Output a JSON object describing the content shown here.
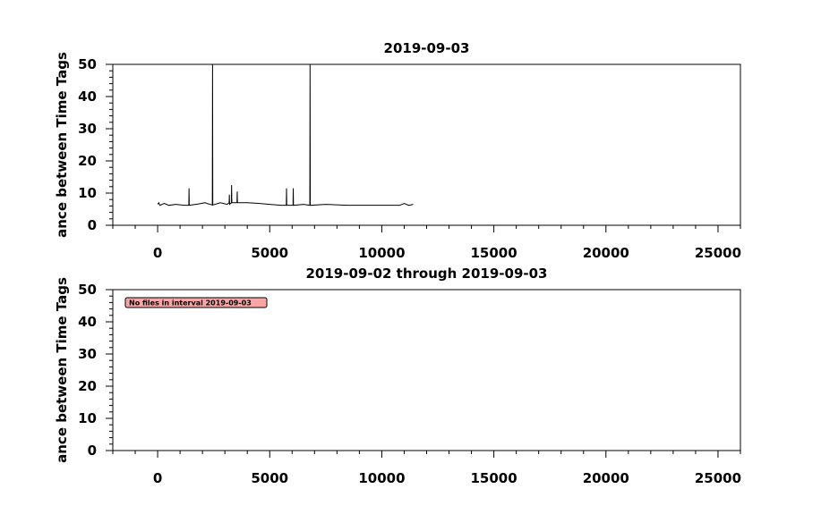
{
  "chart_data": [
    {
      "type": "line",
      "title": "2019-09-03",
      "ylabel": "ance between Time Tags",
      "xlim": [
        -2000,
        26000
      ],
      "ylim": [
        0,
        50
      ],
      "xticks": [
        0,
        5000,
        10000,
        15000,
        20000,
        25000
      ],
      "yticks": [
        0,
        10,
        20,
        30,
        40,
        50
      ],
      "x_minor_ticks": [
        -2000,
        -1000,
        1000,
        2000,
        3000,
        4000,
        6000,
        7000,
        8000,
        9000,
        11000,
        12000,
        13000,
        14000,
        16000,
        17000,
        18000,
        19000,
        21000,
        22000,
        23000,
        24000,
        26000
      ],
      "y_minor_ticks": [
        2,
        4,
        6,
        8,
        12,
        14,
        16,
        18,
        22,
        24,
        26,
        28,
        32,
        34,
        36,
        38,
        42,
        44,
        46,
        48
      ],
      "series": [
        {
          "color": "#000000",
          "x": [
            0,
            50,
            100,
            300,
            500,
            800,
            1200,
            1390,
            1400,
            1410,
            1800,
            2100,
            2440,
            2450,
            2460,
            2800,
            3100,
            3190,
            3200,
            3210,
            3290,
            3300,
            3310,
            3540,
            3550,
            3560,
            4000,
            4500,
            5000,
            5500,
            5740,
            5750,
            5760,
            6040,
            6050,
            6060,
            6500,
            6790,
            6800,
            6810,
            7500,
            8500,
            9500,
            10800,
            11000,
            11200,
            11400
          ],
          "values": [
            6.5,
            7,
            6.2,
            6.8,
            6.2,
            6.5,
            6.2,
            6.2,
            11.5,
            6.2,
            6.6,
            7,
            6.3,
            50,
            6.3,
            7,
            6.5,
            7,
            9.5,
            6.5,
            7,
            12.5,
            7,
            7,
            10.5,
            7,
            7,
            6.8,
            6.5,
            6.2,
            6.2,
            11.5,
            6.2,
            6.2,
            11.5,
            6.2,
            6.5,
            6.2,
            50,
            6.2,
            6.5,
            6.2,
            6.2,
            6.2,
            6.8,
            6.2,
            6.5
          ]
        }
      ]
    },
    {
      "type": "line",
      "title": "2019-09-02 through 2019-09-03",
      "ylabel": "ance between Time Tags",
      "annotation": "No files in interval 2019-09-03",
      "xlim": [
        -2000,
        26000
      ],
      "ylim": [
        0,
        50
      ],
      "xticks": [
        0,
        5000,
        10000,
        15000,
        20000,
        25000
      ],
      "yticks": [
        0,
        10,
        20,
        30,
        40,
        50
      ],
      "x_minor_ticks": [
        -2000,
        -1000,
        1000,
        2000,
        3000,
        4000,
        6000,
        7000,
        8000,
        9000,
        11000,
        12000,
        13000,
        14000,
        16000,
        17000,
        18000,
        19000,
        21000,
        22000,
        23000,
        24000,
        26000
      ],
      "y_minor_ticks": [
        2,
        4,
        6,
        8,
        12,
        14,
        16,
        18,
        22,
        24,
        26,
        28,
        32,
        34,
        36,
        38,
        42,
        44,
        46,
        48
      ],
      "series": []
    }
  ]
}
